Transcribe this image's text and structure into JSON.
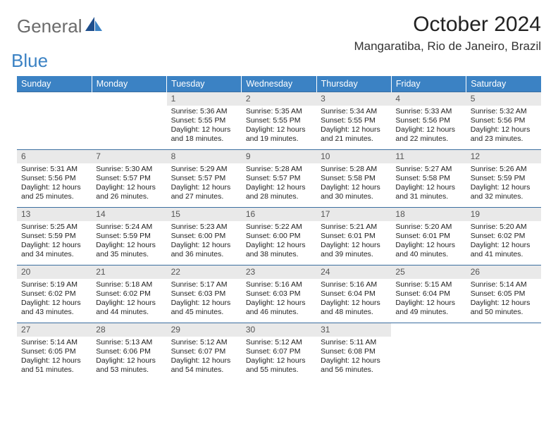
{
  "logo": {
    "word1": "General",
    "word2": "Blue"
  },
  "title": "October 2024",
  "location": "Mangaratiba, Rio de Janeiro, Brazil",
  "colors": {
    "header_bg": "#3b82c4",
    "header_text": "#ffffff",
    "daynum_bg": "#e9e9e9",
    "row_border": "#3b6ea0",
    "logo_gray": "#6b6b6b",
    "logo_blue": "#3b82c4"
  },
  "weekdays": [
    "Sunday",
    "Monday",
    "Tuesday",
    "Wednesday",
    "Thursday",
    "Friday",
    "Saturday"
  ],
  "weeks": [
    [
      null,
      null,
      {
        "n": "1",
        "sr": "Sunrise: 5:36 AM",
        "ss": "Sunset: 5:55 PM",
        "d1": "Daylight: 12 hours",
        "d2": "and 18 minutes."
      },
      {
        "n": "2",
        "sr": "Sunrise: 5:35 AM",
        "ss": "Sunset: 5:55 PM",
        "d1": "Daylight: 12 hours",
        "d2": "and 19 minutes."
      },
      {
        "n": "3",
        "sr": "Sunrise: 5:34 AM",
        "ss": "Sunset: 5:55 PM",
        "d1": "Daylight: 12 hours",
        "d2": "and 21 minutes."
      },
      {
        "n": "4",
        "sr": "Sunrise: 5:33 AM",
        "ss": "Sunset: 5:56 PM",
        "d1": "Daylight: 12 hours",
        "d2": "and 22 minutes."
      },
      {
        "n": "5",
        "sr": "Sunrise: 5:32 AM",
        "ss": "Sunset: 5:56 PM",
        "d1": "Daylight: 12 hours",
        "d2": "and 23 minutes."
      }
    ],
    [
      {
        "n": "6",
        "sr": "Sunrise: 5:31 AM",
        "ss": "Sunset: 5:56 PM",
        "d1": "Daylight: 12 hours",
        "d2": "and 25 minutes."
      },
      {
        "n": "7",
        "sr": "Sunrise: 5:30 AM",
        "ss": "Sunset: 5:57 PM",
        "d1": "Daylight: 12 hours",
        "d2": "and 26 minutes."
      },
      {
        "n": "8",
        "sr": "Sunrise: 5:29 AM",
        "ss": "Sunset: 5:57 PM",
        "d1": "Daylight: 12 hours",
        "d2": "and 27 minutes."
      },
      {
        "n": "9",
        "sr": "Sunrise: 5:28 AM",
        "ss": "Sunset: 5:57 PM",
        "d1": "Daylight: 12 hours",
        "d2": "and 28 minutes."
      },
      {
        "n": "10",
        "sr": "Sunrise: 5:28 AM",
        "ss": "Sunset: 5:58 PM",
        "d1": "Daylight: 12 hours",
        "d2": "and 30 minutes."
      },
      {
        "n": "11",
        "sr": "Sunrise: 5:27 AM",
        "ss": "Sunset: 5:58 PM",
        "d1": "Daylight: 12 hours",
        "d2": "and 31 minutes."
      },
      {
        "n": "12",
        "sr": "Sunrise: 5:26 AM",
        "ss": "Sunset: 5:59 PM",
        "d1": "Daylight: 12 hours",
        "d2": "and 32 minutes."
      }
    ],
    [
      {
        "n": "13",
        "sr": "Sunrise: 5:25 AM",
        "ss": "Sunset: 5:59 PM",
        "d1": "Daylight: 12 hours",
        "d2": "and 34 minutes."
      },
      {
        "n": "14",
        "sr": "Sunrise: 5:24 AM",
        "ss": "Sunset: 5:59 PM",
        "d1": "Daylight: 12 hours",
        "d2": "and 35 minutes."
      },
      {
        "n": "15",
        "sr": "Sunrise: 5:23 AM",
        "ss": "Sunset: 6:00 PM",
        "d1": "Daylight: 12 hours",
        "d2": "and 36 minutes."
      },
      {
        "n": "16",
        "sr": "Sunrise: 5:22 AM",
        "ss": "Sunset: 6:00 PM",
        "d1": "Daylight: 12 hours",
        "d2": "and 38 minutes."
      },
      {
        "n": "17",
        "sr": "Sunrise: 5:21 AM",
        "ss": "Sunset: 6:01 PM",
        "d1": "Daylight: 12 hours",
        "d2": "and 39 minutes."
      },
      {
        "n": "18",
        "sr": "Sunrise: 5:20 AM",
        "ss": "Sunset: 6:01 PM",
        "d1": "Daylight: 12 hours",
        "d2": "and 40 minutes."
      },
      {
        "n": "19",
        "sr": "Sunrise: 5:20 AM",
        "ss": "Sunset: 6:02 PM",
        "d1": "Daylight: 12 hours",
        "d2": "and 41 minutes."
      }
    ],
    [
      {
        "n": "20",
        "sr": "Sunrise: 5:19 AM",
        "ss": "Sunset: 6:02 PM",
        "d1": "Daylight: 12 hours",
        "d2": "and 43 minutes."
      },
      {
        "n": "21",
        "sr": "Sunrise: 5:18 AM",
        "ss": "Sunset: 6:02 PM",
        "d1": "Daylight: 12 hours",
        "d2": "and 44 minutes."
      },
      {
        "n": "22",
        "sr": "Sunrise: 5:17 AM",
        "ss": "Sunset: 6:03 PM",
        "d1": "Daylight: 12 hours",
        "d2": "and 45 minutes."
      },
      {
        "n": "23",
        "sr": "Sunrise: 5:16 AM",
        "ss": "Sunset: 6:03 PM",
        "d1": "Daylight: 12 hours",
        "d2": "and 46 minutes."
      },
      {
        "n": "24",
        "sr": "Sunrise: 5:16 AM",
        "ss": "Sunset: 6:04 PM",
        "d1": "Daylight: 12 hours",
        "d2": "and 48 minutes."
      },
      {
        "n": "25",
        "sr": "Sunrise: 5:15 AM",
        "ss": "Sunset: 6:04 PM",
        "d1": "Daylight: 12 hours",
        "d2": "and 49 minutes."
      },
      {
        "n": "26",
        "sr": "Sunrise: 5:14 AM",
        "ss": "Sunset: 6:05 PM",
        "d1": "Daylight: 12 hours",
        "d2": "and 50 minutes."
      }
    ],
    [
      {
        "n": "27",
        "sr": "Sunrise: 5:14 AM",
        "ss": "Sunset: 6:05 PM",
        "d1": "Daylight: 12 hours",
        "d2": "and 51 minutes."
      },
      {
        "n": "28",
        "sr": "Sunrise: 5:13 AM",
        "ss": "Sunset: 6:06 PM",
        "d1": "Daylight: 12 hours",
        "d2": "and 53 minutes."
      },
      {
        "n": "29",
        "sr": "Sunrise: 5:12 AM",
        "ss": "Sunset: 6:07 PM",
        "d1": "Daylight: 12 hours",
        "d2": "and 54 minutes."
      },
      {
        "n": "30",
        "sr": "Sunrise: 5:12 AM",
        "ss": "Sunset: 6:07 PM",
        "d1": "Daylight: 12 hours",
        "d2": "and 55 minutes."
      },
      {
        "n": "31",
        "sr": "Sunrise: 5:11 AM",
        "ss": "Sunset: 6:08 PM",
        "d1": "Daylight: 12 hours",
        "d2": "and 56 minutes."
      },
      null,
      null
    ]
  ]
}
